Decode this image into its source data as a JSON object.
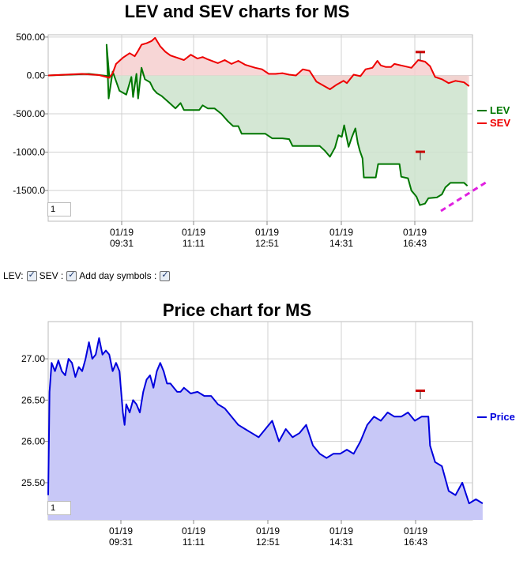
{
  "chart_data": [
    {
      "type": "line",
      "title": "LEV and SEV charts for MS",
      "x_ticks": [
        "01/19\n09:31",
        "01/19\n11:11",
        "01/19\n12:51",
        "01/19\n14:31",
        "01/19\n16:43"
      ],
      "y_ticks": [
        "500.00",
        "0.00",
        "-500.00",
        "-1000.0",
        "-1500.0"
      ],
      "ylim": [
        -1900,
        530
      ],
      "grid": true,
      "legend_placement": "right",
      "series": [
        {
          "name": "LEV",
          "color": "#007700",
          "fill": "#cde3cd",
          "points": [
            [
              0,
              0
            ],
            [
              0.12,
              20
            ],
            [
              0.18,
              -10
            ],
            [
              0.172,
              400
            ],
            [
              0.178,
              -300
            ],
            [
              0.19,
              50
            ],
            [
              0.21,
              -200
            ],
            [
              0.23,
              -250
            ],
            [
              0.245,
              -20
            ],
            [
              0.25,
              -280
            ],
            [
              0.26,
              20
            ],
            [
              0.265,
              -300
            ],
            [
              0.275,
              100
            ],
            [
              0.285,
              -50
            ],
            [
              0.3,
              -90
            ],
            [
              0.31,
              -180
            ],
            [
              0.32,
              -230
            ],
            [
              0.335,
              -270
            ],
            [
              0.36,
              -370
            ],
            [
              0.375,
              -430
            ],
            [
              0.39,
              -360
            ],
            [
              0.4,
              -450
            ],
            [
              0.42,
              -450
            ],
            [
              0.44,
              -450
            ],
            [
              0.445,
              -450
            ],
            [
              0.455,
              -390
            ],
            [
              0.47,
              -430
            ],
            [
              0.49,
              -430
            ],
            [
              0.51,
              -500
            ],
            [
              0.53,
              -600
            ],
            [
              0.545,
              -660
            ],
            [
              0.56,
              -660
            ],
            [
              0.57,
              -760
            ],
            [
              0.6,
              -760
            ],
            [
              0.64,
              -760
            ],
            [
              0.66,
              -820
            ],
            [
              0.69,
              -820
            ],
            [
              0.71,
              -830
            ],
            [
              0.72,
              -920
            ],
            [
              0.76,
              -920
            ],
            [
              0.8,
              -920
            ],
            [
              0.815,
              -980
            ],
            [
              0.83,
              -1060
            ],
            [
              0.845,
              -940
            ],
            [
              0.855,
              -780
            ],
            [
              0.865,
              -800
            ],
            [
              0.872,
              -650
            ],
            [
              0.885,
              -930
            ],
            [
              0.895,
              -800
            ],
            [
              0.905,
              -690
            ],
            [
              0.912,
              -880
            ],
            [
              0.918,
              -980
            ],
            [
              0.926,
              -1080
            ],
            [
              0.93,
              -1330
            ],
            [
              0.94,
              -1330
            ],
            [
              0.965,
              -1330
            ],
            [
              0.972,
              -1155
            ],
            [
              1.0,
              -1155
            ],
            [
              1.035,
              -1155
            ],
            [
              1.04,
              -1320
            ],
            [
              1.06,
              -1340
            ],
            [
              1.07,
              -1500
            ],
            [
              1.085,
              -1580
            ],
            [
              1.095,
              -1690
            ],
            [
              1.11,
              -1670
            ],
            [
              1.12,
              -1600
            ],
            [
              1.145,
              -1590
            ],
            [
              1.16,
              -1550
            ],
            [
              1.17,
              -1460
            ],
            [
              1.185,
              -1400
            ],
            [
              1.205,
              -1400
            ],
            [
              1.225,
              -1400
            ],
            [
              1.235,
              -1440
            ]
          ]
        },
        {
          "name": "SEV",
          "color": "#ee0000",
          "fill": "#f6cfcf",
          "points": [
            [
              0,
              0
            ],
            [
              0.05,
              10
            ],
            [
              0.1,
              20
            ],
            [
              0.15,
              5
            ],
            [
              0.18,
              -30
            ],
            [
              0.19,
              30
            ],
            [
              0.2,
              150
            ],
            [
              0.22,
              230
            ],
            [
              0.24,
              290
            ],
            [
              0.255,
              250
            ],
            [
              0.265,
              320
            ],
            [
              0.275,
              400
            ],
            [
              0.29,
              420
            ],
            [
              0.305,
              450
            ],
            [
              0.315,
              490
            ],
            [
              0.33,
              380
            ],
            [
              0.345,
              310
            ],
            [
              0.36,
              260
            ],
            [
              0.38,
              230
            ],
            [
              0.4,
              200
            ],
            [
              0.42,
              270
            ],
            [
              0.44,
              220
            ],
            [
              0.455,
              240
            ],
            [
              0.47,
              210
            ],
            [
              0.5,
              160
            ],
            [
              0.52,
              200
            ],
            [
              0.54,
              150
            ],
            [
              0.56,
              190
            ],
            [
              0.58,
              140
            ],
            [
              0.61,
              100
            ],
            [
              0.63,
              80
            ],
            [
              0.65,
              20
            ],
            [
              0.67,
              20
            ],
            [
              0.69,
              30
            ],
            [
              0.71,
              10
            ],
            [
              0.73,
              0
            ],
            [
              0.75,
              80
            ],
            [
              0.77,
              60
            ],
            [
              0.79,
              -80
            ],
            [
              0.81,
              -130
            ],
            [
              0.83,
              -180
            ],
            [
              0.85,
              -120
            ],
            [
              0.87,
              -70
            ],
            [
              0.88,
              -100
            ],
            [
              0.9,
              10
            ],
            [
              0.92,
              -10
            ],
            [
              0.935,
              80
            ],
            [
              0.955,
              100
            ],
            [
              0.97,
              190
            ],
            [
              0.98,
              130
            ],
            [
              0.995,
              110
            ],
            [
              1.01,
              110
            ],
            [
              1.02,
              150
            ],
            [
              1.05,
              120
            ],
            [
              1.07,
              100
            ],
            [
              1.09,
              200
            ],
            [
              1.11,
              180
            ],
            [
              1.125,
              120
            ],
            [
              1.14,
              -20
            ],
            [
              1.16,
              -50
            ],
            [
              1.18,
              -100
            ],
            [
              1.2,
              -70
            ],
            [
              1.225,
              -90
            ],
            [
              1.24,
              -140
            ]
          ]
        }
      ],
      "zoom_value": "1",
      "trend_line_color": "#e020e0",
      "marker_color": "#cc0000"
    },
    {
      "type": "area",
      "title": "Price chart for MS",
      "x_ticks": [
        "01/19\n09:31",
        "01/19\n11:11",
        "01/19\n12:51",
        "01/19\n14:31",
        "01/19\n16:43"
      ],
      "y_ticks": [
        "27.00",
        "26.50",
        "26.00",
        "25.50"
      ],
      "ylim": [
        25.05,
        27.45
      ],
      "grid": true,
      "legend_placement": "right",
      "series": [
        {
          "name": "Price",
          "color": "#0000dd",
          "fill": "#c8c8f7",
          "points": [
            [
              0,
              25.35
            ],
            [
              0.004,
              26.6
            ],
            [
              0.01,
              26.95
            ],
            [
              0.02,
              26.85
            ],
            [
              0.03,
              26.98
            ],
            [
              0.04,
              26.85
            ],
            [
              0.05,
              26.8
            ],
            [
              0.06,
              27.0
            ],
            [
              0.07,
              26.95
            ],
            [
              0.08,
              26.78
            ],
            [
              0.09,
              26.9
            ],
            [
              0.1,
              26.85
            ],
            [
              0.11,
              27.0
            ],
            [
              0.12,
              27.2
            ],
            [
              0.13,
              27.0
            ],
            [
              0.14,
              27.05
            ],
            [
              0.15,
              27.25
            ],
            [
              0.16,
              27.05
            ],
            [
              0.17,
              27.1
            ],
            [
              0.18,
              27.05
            ],
            [
              0.19,
              26.85
            ],
            [
              0.2,
              26.95
            ],
            [
              0.21,
              26.85
            ],
            [
              0.22,
              26.35
            ],
            [
              0.225,
              26.2
            ],
            [
              0.23,
              26.45
            ],
            [
              0.24,
              26.35
            ],
            [
              0.25,
              26.5
            ],
            [
              0.26,
              26.45
            ],
            [
              0.27,
              26.35
            ],
            [
              0.28,
              26.6
            ],
            [
              0.29,
              26.75
            ],
            [
              0.3,
              26.8
            ],
            [
              0.31,
              26.65
            ],
            [
              0.32,
              26.85
            ],
            [
              0.33,
              26.95
            ],
            [
              0.34,
              26.85
            ],
            [
              0.35,
              26.7
            ],
            [
              0.36,
              26.7
            ],
            [
              0.37,
              26.65
            ],
            [
              0.38,
              26.6
            ],
            [
              0.39,
              26.6
            ],
            [
              0.4,
              26.65
            ],
            [
              0.42,
              26.58
            ],
            [
              0.44,
              26.6
            ],
            [
              0.46,
              26.55
            ],
            [
              0.48,
              26.55
            ],
            [
              0.5,
              26.45
            ],
            [
              0.52,
              26.4
            ],
            [
              0.54,
              26.3
            ],
            [
              0.56,
              26.2
            ],
            [
              0.58,
              26.15
            ],
            [
              0.6,
              26.1
            ],
            [
              0.62,
              26.05
            ],
            [
              0.64,
              26.15
            ],
            [
              0.66,
              26.25
            ],
            [
              0.68,
              26.0
            ],
            [
              0.7,
              26.15
            ],
            [
              0.72,
              26.05
            ],
            [
              0.74,
              26.1
            ],
            [
              0.76,
              26.2
            ],
            [
              0.78,
              25.95
            ],
            [
              0.8,
              25.85
            ],
            [
              0.82,
              25.8
            ],
            [
              0.84,
              25.85
            ],
            [
              0.86,
              25.85
            ],
            [
              0.88,
              25.9
            ],
            [
              0.9,
              25.85
            ],
            [
              0.92,
              26.0
            ],
            [
              0.94,
              26.2
            ],
            [
              0.96,
              26.3
            ],
            [
              0.98,
              26.25
            ],
            [
              1.0,
              26.35
            ],
            [
              1.02,
              26.3
            ],
            [
              1.04,
              26.3
            ],
            [
              1.06,
              26.35
            ],
            [
              1.08,
              26.25
            ],
            [
              1.1,
              26.3
            ],
            [
              1.12,
              26.3
            ],
            [
              1.125,
              25.95
            ],
            [
              1.14,
              25.75
            ],
            [
              1.16,
              25.7
            ],
            [
              1.18,
              25.4
            ],
            [
              1.2,
              25.35
            ],
            [
              1.22,
              25.5
            ],
            [
              1.24,
              25.25
            ],
            [
              1.26,
              25.3
            ],
            [
              1.28,
              25.25
            ]
          ]
        }
      ],
      "zoom_value": "1",
      "marker_color": "#cc0000"
    }
  ],
  "controls": {
    "lev_label": "LEV:",
    "sev_label": "SEV :",
    "day_symbols_label": "Add day symbols :"
  }
}
